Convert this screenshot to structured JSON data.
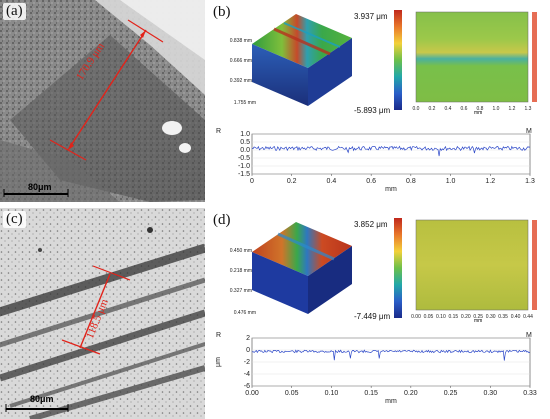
{
  "panels": {
    "a": {
      "label": "(a)",
      "scale_bar": "80μm",
      "measurement": "170.9 μm"
    },
    "b": {
      "label": "(b)",
      "z_max": "3.937 μm",
      "z_min": "-5.893 μm",
      "axis_ticks_3d": [
        "0.838 mm",
        "0.666 mm",
        "0.392 mm",
        "1.755 mm"
      ],
      "map_x_ticks": [
        "0.0",
        "0.2",
        "0.4",
        "0.6",
        "0.8",
        "1.0",
        "1.2",
        "1.3"
      ],
      "map_unit": "mm",
      "profile": {
        "r_label": "R",
        "m_label": "M",
        "y_ticks": [
          "1.0",
          "0.5",
          "0.0",
          "-0.5",
          "-1.0",
          "-1.5"
        ],
        "x_ticks": [
          "0",
          "0.2",
          "0.4",
          "0.6",
          "0.8",
          "1.0",
          "1.2",
          "1.3"
        ],
        "x_unit": "mm"
      }
    },
    "c": {
      "label": "(c)",
      "scale_bar": "80μm",
      "measurement": "118.5 μm"
    },
    "d": {
      "label": "(d)",
      "z_max": "3.852 μm",
      "z_min": "-7.449 μm",
      "axis_ticks_3d": [
        "0.450 mm",
        "0.218 mm",
        "0.327 mm",
        "0.476 mm"
      ],
      "map_x_ticks": [
        "0.00",
        "0.05",
        "0.10",
        "0.15",
        "0.20",
        "0.25",
        "0.30",
        "0.35",
        "0.40",
        "0.44"
      ],
      "map_unit": "mm",
      "profile": {
        "r_label": "R",
        "m_label": "M",
        "y_ticks": [
          "2",
          "0",
          "-2",
          "-4",
          "-6"
        ],
        "y_unit": "μm",
        "x_ticks": [
          "0.00",
          "0.05",
          "0.10",
          "0.15",
          "0.20",
          "0.25",
          "0.30",
          "0.33"
        ],
        "x_unit": "mm"
      }
    }
  },
  "colors": {
    "measure_red": "#e2231a",
    "profile_blue": "#2a46c8"
  }
}
